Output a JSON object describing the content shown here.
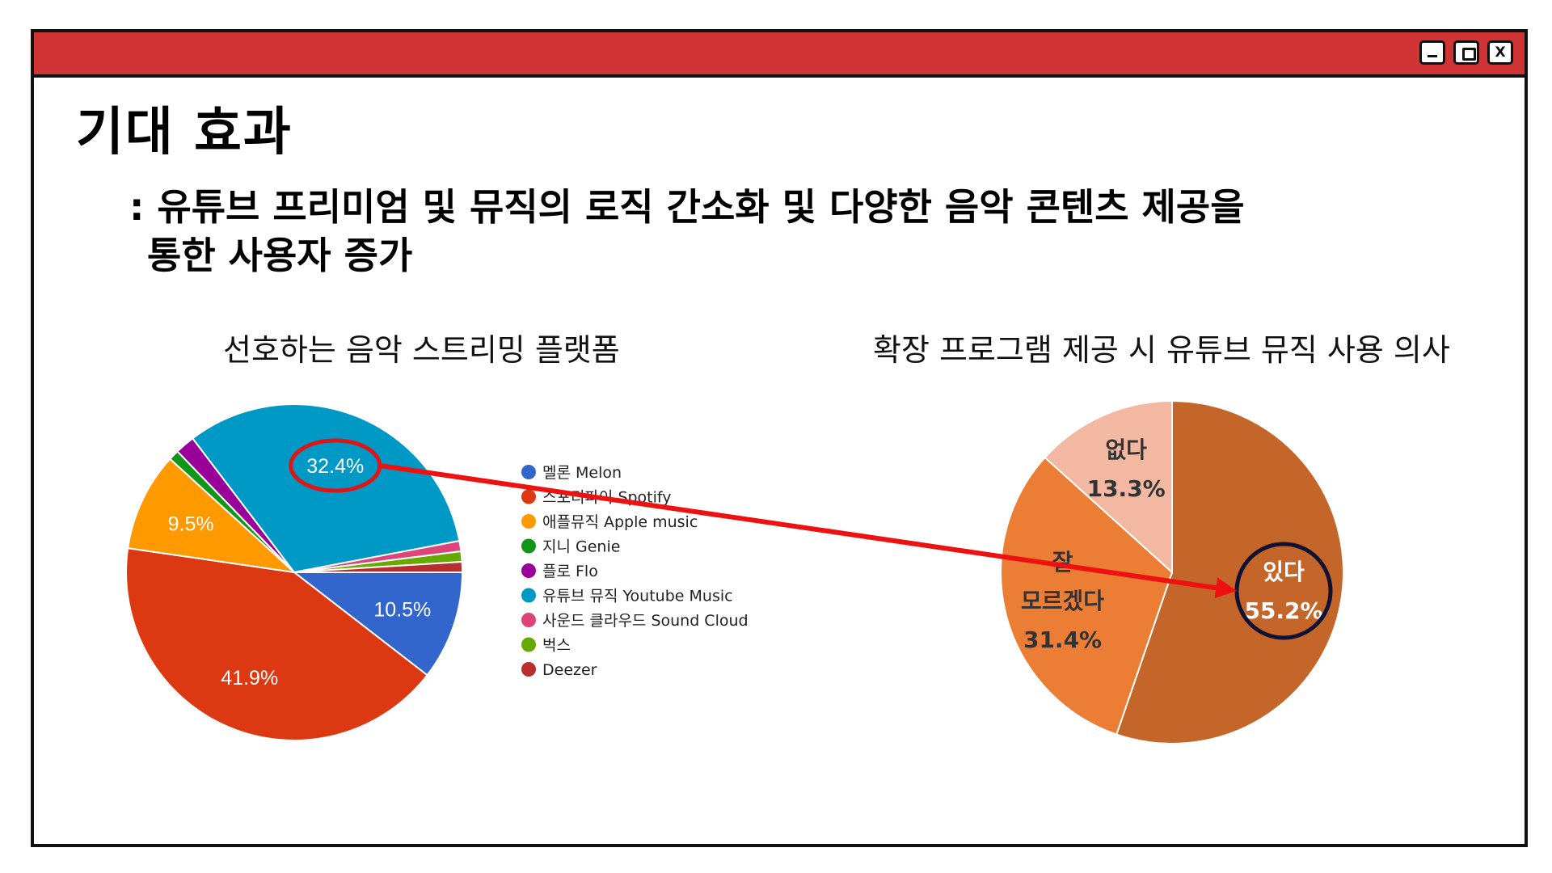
{
  "window": {
    "controls": {
      "minimize": "",
      "maximize": "",
      "close": "X"
    },
    "colors": {
      "titlebar": "#d03434",
      "border": "#111111"
    }
  },
  "page": {
    "title": "기대 효과",
    "subtitle_line1": ": 유튜브 프리미엄 및 뮤직의 로직 간소화 및 다양한 음악 콘텐츠 제공을",
    "subtitle_line2": "통한 사용자 증가"
  },
  "chart_data": [
    {
      "type": "pie",
      "title": "선호하는 음악 스트리밍 플랫폼",
      "legend_position": "right",
      "slices": [
        {
          "label": "멜론 Melon",
          "value": 10.5,
          "color": "#3366cc",
          "data_label": "10.5%"
        },
        {
          "label": "스포티파이 Spotify",
          "value": 41.9,
          "color": "#dc3912",
          "data_label": "41.9%"
        },
        {
          "label": "애플뮤직 Apple music",
          "value": 9.5,
          "color": "#ff9900",
          "data_label": "9.5%"
        },
        {
          "label": "지니 Genie",
          "value": 1.0,
          "color": "#109618",
          "data_label": ""
        },
        {
          "label": "플로 Flo",
          "value": 1.9,
          "color": "#990099",
          "data_label": ""
        },
        {
          "label": "유튜브 뮤직 Youtube Music",
          "value": 32.4,
          "color": "#0099c6",
          "data_label": "32.4%"
        },
        {
          "label": "사운드 클라우드 Sound Cloud",
          "value": 1.0,
          "color": "#dd4477",
          "data_label": ""
        },
        {
          "label": "벅스",
          "value": 1.0,
          "color": "#66aa00",
          "data_label": ""
        },
        {
          "label": "Deezer",
          "value": 1.0,
          "color": "#b82e2e",
          "data_label": ""
        }
      ],
      "highlighted": "32.4%"
    },
    {
      "type": "pie",
      "title": "확장 프로그램 제공 시 유튜브 뮤직 사용 의사",
      "slices": [
        {
          "label": "있다",
          "value": 55.2,
          "color": "#c4662a",
          "data_label": "55.2%"
        },
        {
          "label": "잘 모르겠다",
          "value": 31.4,
          "color": "#eb7d35",
          "data_label": "31.4%"
        },
        {
          "label": "없다",
          "value": 13.3,
          "color": "#f2b8a2",
          "data_label": "13.3%"
        }
      ],
      "highlighted": "55.2%"
    }
  ],
  "annotation": {
    "arrow_color": "#ee1111",
    "circle_left_color": "#e01414",
    "circle_right_color": "#111133"
  }
}
